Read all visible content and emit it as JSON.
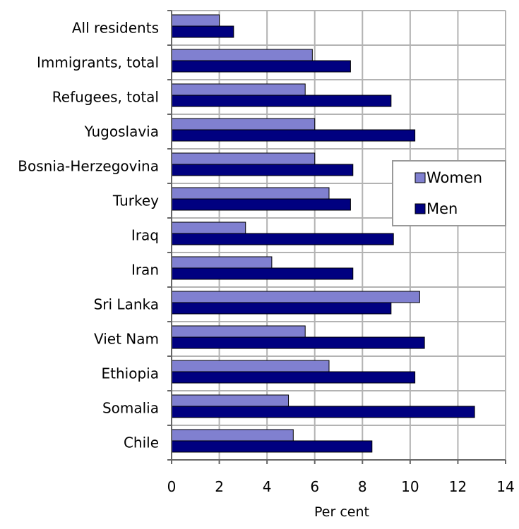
{
  "chart_data": {
    "type": "bar",
    "orientation": "horizontal",
    "title": "",
    "xlabel": "Per cent",
    "ylabel": "",
    "xlim": [
      0,
      14
    ],
    "x_ticks": [
      "0",
      "2",
      "4",
      "6",
      "8",
      "10",
      "12",
      "14"
    ],
    "grid": true,
    "legend_position": "right",
    "categories": [
      "All residents",
      "Immigrants, total",
      "Refugees, total",
      "Yugoslavia",
      "Bosnia-Herzegovina",
      "Turkey",
      "Iraq",
      "Iran",
      "Sri Lanka",
      "Viet Nam",
      "Ethiopia",
      "Somalia",
      "Chile"
    ],
    "series": [
      {
        "name": "Women",
        "color": "#8080d0",
        "values": [
          2.0,
          5.9,
          5.6,
          6.0,
          6.0,
          6.6,
          3.1,
          4.2,
          10.4,
          5.6,
          6.6,
          4.9,
          5.1
        ]
      },
      {
        "name": "Men",
        "color": "#000080",
        "values": [
          2.6,
          7.5,
          9.2,
          10.2,
          7.6,
          7.5,
          9.3,
          7.6,
          9.2,
          10.6,
          10.2,
          12.7,
          8.4
        ]
      }
    ]
  }
}
